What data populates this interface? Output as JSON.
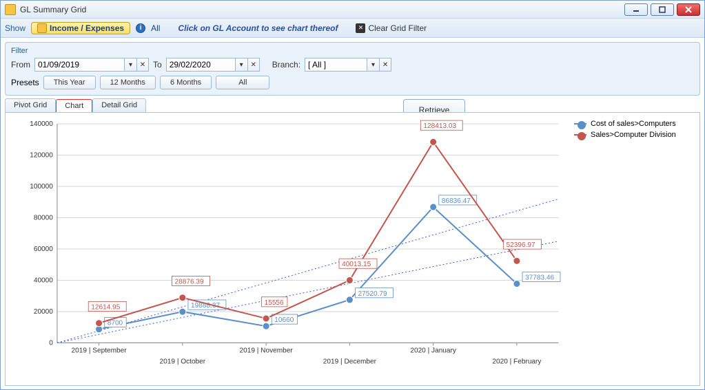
{
  "window": {
    "title": "GL Summary Grid"
  },
  "toolbar": {
    "show_label": "Show",
    "badge_label": "Income / Expenses",
    "all_label": "All",
    "hint": "Click on GL Account to see chart thereof",
    "clear_label": "Clear Grid Filter"
  },
  "filter": {
    "caption": "Filter",
    "from_label": "From",
    "from_value": "01/09/2019",
    "to_label": "To",
    "to_value": "29/02/2020",
    "branch_label": "Branch:",
    "branch_value": "[ All ]",
    "retrieve_label": "Retrieve",
    "presets_label": "Presets",
    "preset_thisyear": "This Year",
    "preset_12m": "12 Months",
    "preset_6m": "6 Months",
    "preset_all": "All"
  },
  "tabs": {
    "pivot": "Pivot Grid",
    "chart": "Chart",
    "detail": "Detail Grid"
  },
  "chart": {
    "type": "line",
    "categories": [
      "2019 | September",
      "2019 | October",
      "2019 | November",
      "2019 | December",
      "2020 | January",
      "2020 | February"
    ],
    "series": [
      {
        "name": "Cost of sales>Computers",
        "color": "#5b8fc7",
        "values": [
          8700,
          19888.37,
          10660,
          27520.79,
          86836.47,
          37783.46
        ],
        "labels": [
          "8700",
          "19888.37",
          "10660",
          "27520.79",
          "86836.47",
          "37783.46"
        ]
      },
      {
        "name": "Sales>Computer Division",
        "color": "#c1574f",
        "values": [
          12614.95,
          28876.39,
          15556,
          40013.15,
          128413.03,
          52396.97
        ],
        "labels": [
          "12614.95",
          "28876.39",
          "15556",
          "40013.15",
          "128413.03",
          "52396.97"
        ]
      }
    ],
    "ylim": [
      0,
      140000
    ],
    "ytick_step": 20000,
    "background_color": "#ffffff",
    "grid_color": "#d6d6d6",
    "line_width": 2,
    "marker_size": 5,
    "trend_color": "#3a5fd8",
    "label_box_blue": "#5b8fc7",
    "label_box_red": "#c1574f",
    "label_fontsize": 10
  }
}
